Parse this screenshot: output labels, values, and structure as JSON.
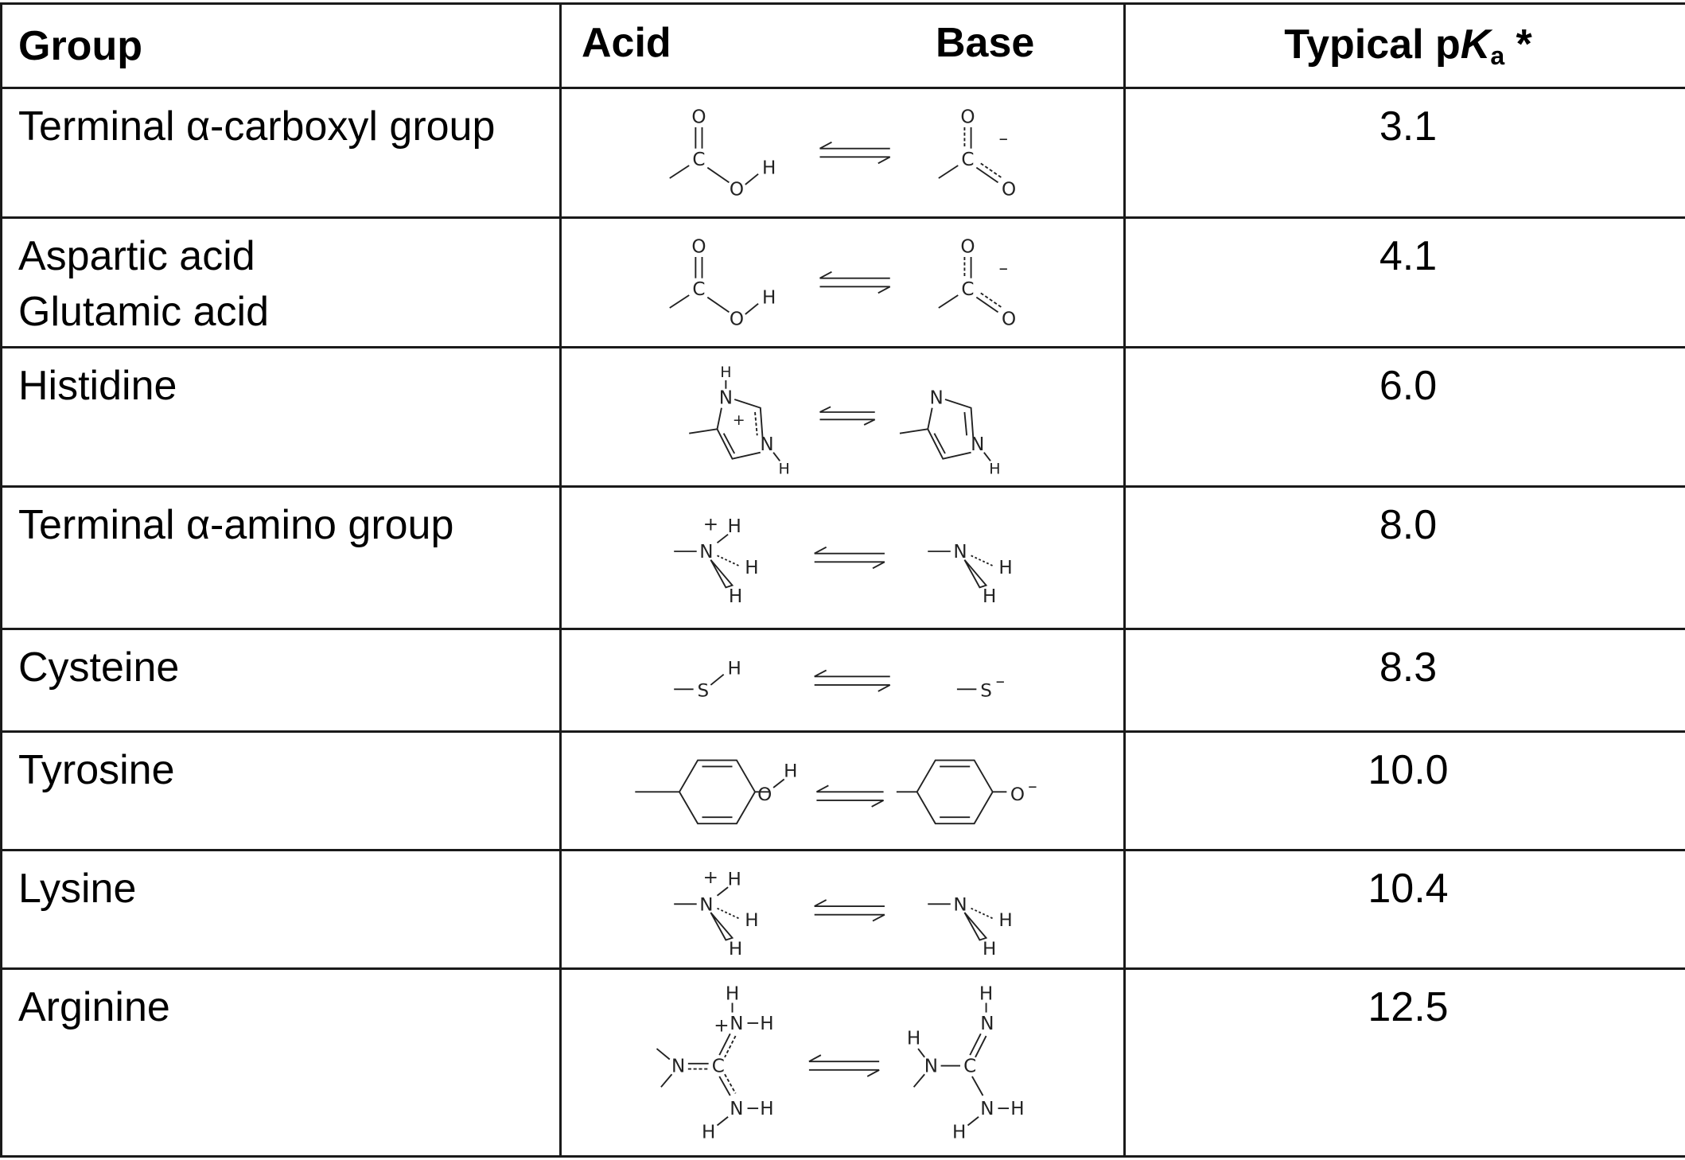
{
  "header": {
    "group": "Group",
    "acid": "Acid",
    "base": "Base",
    "pka_prefix": "Typical p",
    "pka_k": "K",
    "pka_sub": "a",
    "pka_suffix": " *"
  },
  "rows": [
    {
      "group": "Terminal α-carboxyl group",
      "structure": "carboxyl",
      "pka": "3.1"
    },
    {
      "group": "Aspartic acid\nGlutamic acid",
      "group_line1": "Aspartic acid",
      "group_line2": "Glutamic acid",
      "structure": "carboxyl",
      "pka": "4.1"
    },
    {
      "group": "Histidine",
      "structure": "imidazole",
      "pka": "6.0"
    },
    {
      "group": "Terminal α-amino group",
      "structure": "amine",
      "pka": "8.0"
    },
    {
      "group": "Cysteine",
      "structure": "thiol",
      "pka": "8.3"
    },
    {
      "group": "Tyrosine",
      "structure": "phenol",
      "pka": "10.0"
    },
    {
      "group": "Lysine",
      "structure": "amine",
      "pka": "10.4"
    },
    {
      "group": "Arginine",
      "structure": "guanidinium",
      "pka": "12.5"
    }
  ],
  "colors": {
    "border": "#1a1a1a",
    "text": "#000000"
  }
}
